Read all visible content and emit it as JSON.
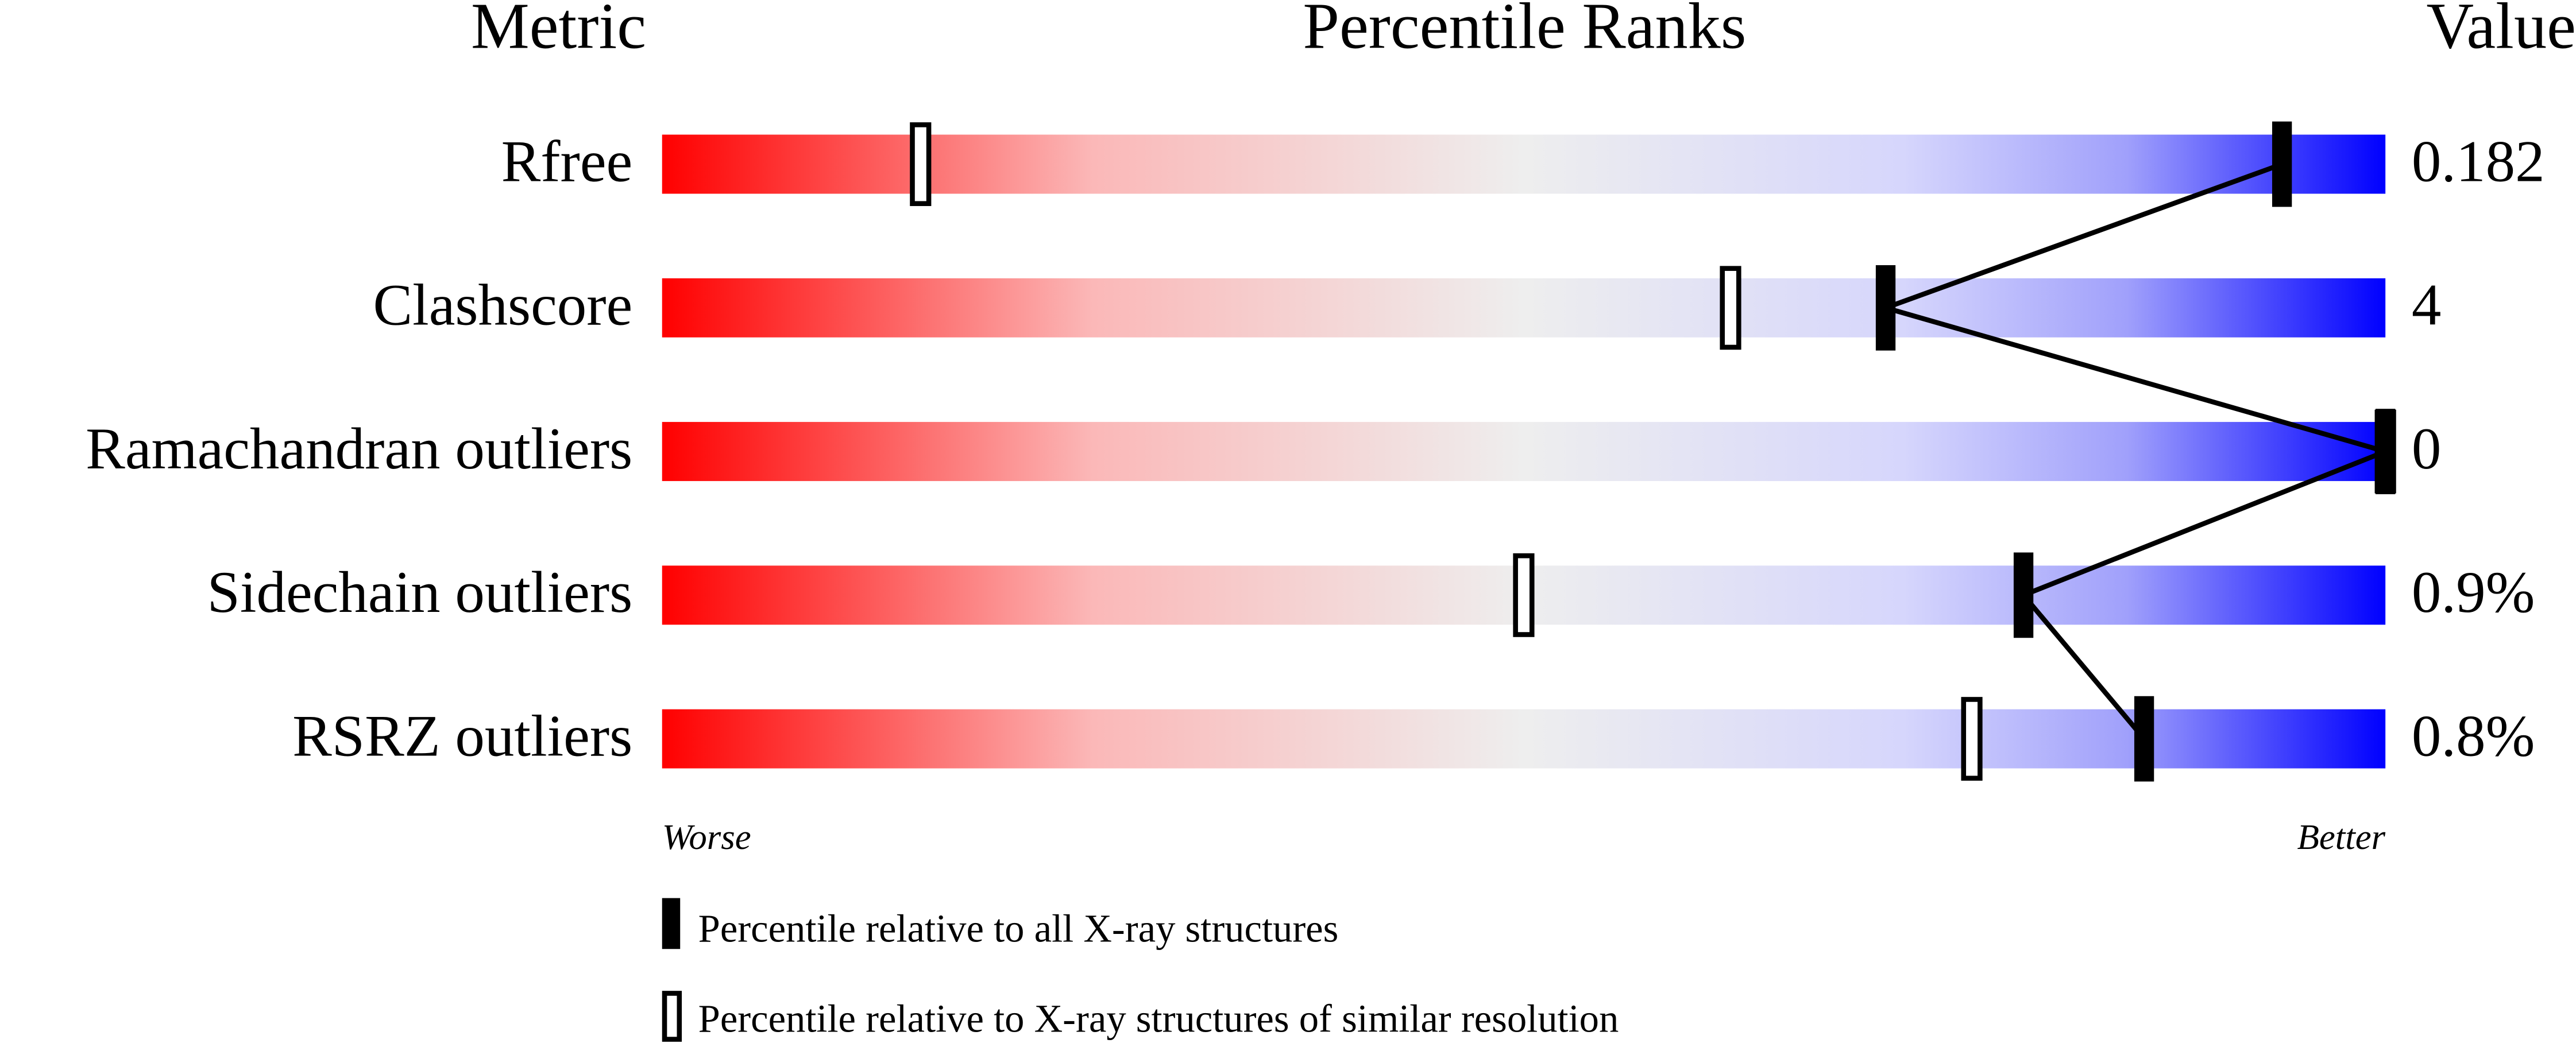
{
  "chart_data": {
    "type": "percentile-slider",
    "header_metric": "Metric",
    "title": "Percentile Ranks",
    "header_value": "Value",
    "categories": [
      "Rfree",
      "Clashscore",
      "Ramachandran outliers",
      "Sidechain outliers",
      "RSRZ outliers"
    ],
    "metric_values": [
      "0.182",
      "4",
      "0",
      "0.9%",
      "0.8%"
    ],
    "series": [
      {
        "name": "Percentile relative to all X-ray structures",
        "color": "#000000",
        "values": [
          94,
          71,
          100,
          79,
          86
        ]
      },
      {
        "name": "Percentile relative to X-ray structures of similar resolution",
        "color": "#ffffff",
        "values": [
          15,
          62,
          100,
          50,
          76
        ]
      }
    ],
    "xlim": [
      0,
      100
    ],
    "worse_label": "Worse",
    "better_label": "Better"
  }
}
